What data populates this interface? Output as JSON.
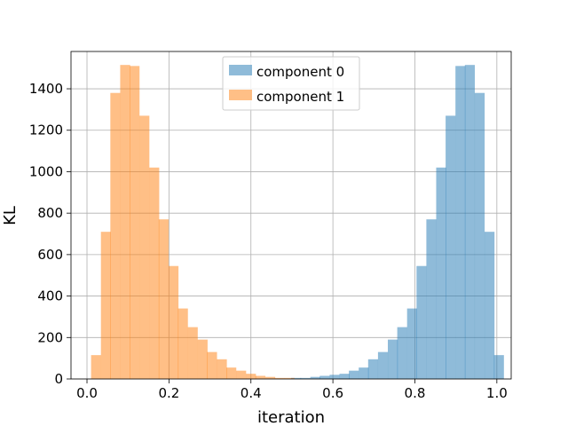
{
  "chart_data": {
    "type": "histogram",
    "title": "",
    "xlabel": "iteration",
    "ylabel": "KL",
    "xlim": [
      -0.039,
      1.035
    ],
    "ylim": [
      0,
      1580
    ],
    "xticks": [
      0.0,
      0.2,
      0.4,
      0.6,
      0.8,
      1.0
    ],
    "xtick_labels": [
      "0.0",
      "0.2",
      "0.4",
      "0.6",
      "0.8",
      "1.0"
    ],
    "yticks": [
      0,
      200,
      400,
      600,
      800,
      1000,
      1200,
      1400
    ],
    "ytick_labels": [
      "0",
      "200",
      "400",
      "600",
      "800",
      "1000",
      "1200",
      "1400"
    ],
    "grid": true,
    "legend": {
      "placement": "top-center",
      "entries": [
        "component 0",
        "component 1"
      ]
    },
    "colors": {
      "component_0": "#1f77b4",
      "component_1": "#ff7f0e",
      "alpha": 0.5
    },
    "series": [
      {
        "name": "component 0",
        "bin_width": 0.0236,
        "bins": [
          {
            "x0": 0.498,
            "y": 5
          },
          {
            "x0": 0.521,
            "y": 5
          },
          {
            "x0": 0.545,
            "y": 10
          },
          {
            "x0": 0.568,
            "y": 15
          },
          {
            "x0": 0.592,
            "y": 20
          },
          {
            "x0": 0.616,
            "y": 25
          },
          {
            "x0": 0.639,
            "y": 40
          },
          {
            "x0": 0.663,
            "y": 55
          },
          {
            "x0": 0.686,
            "y": 95
          },
          {
            "x0": 0.71,
            "y": 130
          },
          {
            "x0": 0.734,
            "y": 190
          },
          {
            "x0": 0.757,
            "y": 250
          },
          {
            "x0": 0.781,
            "y": 340
          },
          {
            "x0": 0.804,
            "y": 545
          },
          {
            "x0": 0.828,
            "y": 770
          },
          {
            "x0": 0.852,
            "y": 1020
          },
          {
            "x0": 0.875,
            "y": 1270
          },
          {
            "x0": 0.899,
            "y": 1510
          },
          {
            "x0": 0.922,
            "y": 1515
          },
          {
            "x0": 0.946,
            "y": 1380
          },
          {
            "x0": 0.97,
            "y": 710
          },
          {
            "x0": 0.993,
            "y": 115
          }
        ]
      },
      {
        "name": "component 1",
        "bin_width": 0.0236,
        "bins": [
          {
            "x0": 0.01,
            "y": 115
          },
          {
            "x0": 0.034,
            "y": 710
          },
          {
            "x0": 0.057,
            "y": 1380
          },
          {
            "x0": 0.081,
            "y": 1515
          },
          {
            "x0": 0.104,
            "y": 1510
          },
          {
            "x0": 0.128,
            "y": 1270
          },
          {
            "x0": 0.152,
            "y": 1020
          },
          {
            "x0": 0.175,
            "y": 770
          },
          {
            "x0": 0.199,
            "y": 545
          },
          {
            "x0": 0.222,
            "y": 340
          },
          {
            "x0": 0.246,
            "y": 250
          },
          {
            "x0": 0.27,
            "y": 190
          },
          {
            "x0": 0.293,
            "y": 130
          },
          {
            "x0": 0.317,
            "y": 95
          },
          {
            "x0": 0.34,
            "y": 55
          },
          {
            "x0": 0.364,
            "y": 40
          },
          {
            "x0": 0.388,
            "y": 25
          },
          {
            "x0": 0.411,
            "y": 15
          },
          {
            "x0": 0.435,
            "y": 10
          },
          {
            "x0": 0.458,
            "y": 5
          },
          {
            "x0": 0.482,
            "y": 5
          }
        ]
      }
    ]
  }
}
